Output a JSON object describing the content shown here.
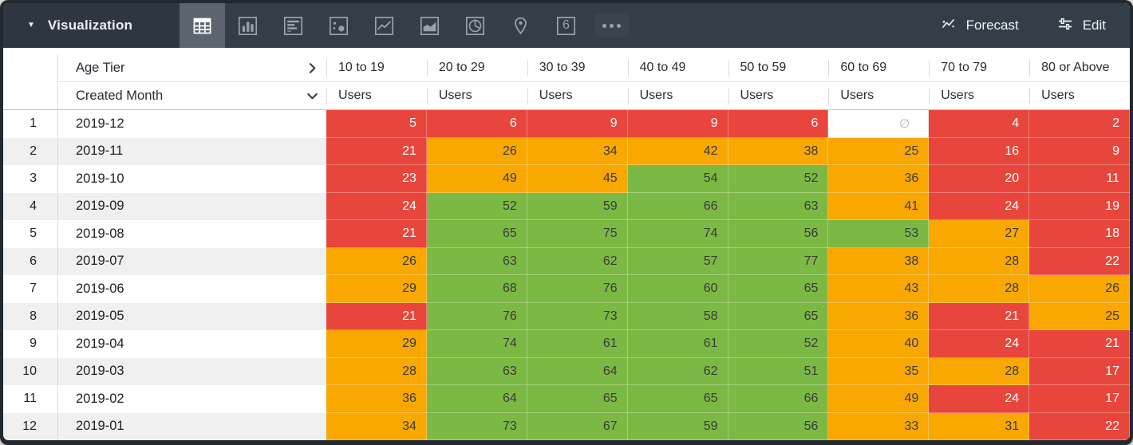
{
  "toolbar": {
    "panel_title": "Visualization",
    "viz_types": [
      "table",
      "bar-chart",
      "row-chart",
      "scatter-plot",
      "line-chart",
      "area-chart",
      "pie-chart",
      "map",
      "single-value",
      "more-options"
    ],
    "selected_viz": "table",
    "single_value_glyph": "6",
    "forecast_label": "Forecast",
    "edit_label": "Edit"
  },
  "table": {
    "pivot_field_label": "Age Tier",
    "row_field_label": "Created Month",
    "measure_label": "Users",
    "age_tiers": [
      "10 to 19",
      "20 to 29",
      "30 to 39",
      "40 to 49",
      "50 to 59",
      "60 to 69",
      "70 to 79",
      "80 or Above"
    ],
    "null_symbol": "∅",
    "rows": [
      {
        "index": 1,
        "month": "2019-12",
        "values": [
          5,
          6,
          9,
          9,
          6,
          null,
          4,
          2
        ]
      },
      {
        "index": 2,
        "month": "2019-11",
        "values": [
          21,
          26,
          34,
          42,
          38,
          25,
          16,
          9
        ]
      },
      {
        "index": 3,
        "month": "2019-10",
        "values": [
          23,
          49,
          45,
          54,
          52,
          36,
          20,
          11
        ]
      },
      {
        "index": 4,
        "month": "2019-09",
        "values": [
          24,
          52,
          59,
          66,
          63,
          41,
          24,
          19
        ]
      },
      {
        "index": 5,
        "month": "2019-08",
        "values": [
          21,
          65,
          75,
          74,
          56,
          53,
          27,
          18
        ]
      },
      {
        "index": 6,
        "month": "2019-07",
        "values": [
          26,
          63,
          62,
          57,
          77,
          38,
          28,
          22
        ]
      },
      {
        "index": 7,
        "month": "2019-06",
        "values": [
          29,
          68,
          76,
          60,
          65,
          43,
          28,
          26
        ]
      },
      {
        "index": 8,
        "month": "2019-05",
        "values": [
          21,
          76,
          73,
          58,
          65,
          36,
          21,
          25
        ]
      },
      {
        "index": 9,
        "month": "2019-04",
        "values": [
          29,
          74,
          61,
          61,
          52,
          40,
          24,
          21
        ]
      },
      {
        "index": 10,
        "month": "2019-03",
        "values": [
          28,
          63,
          64,
          62,
          51,
          35,
          28,
          17
        ]
      },
      {
        "index": 11,
        "month": "2019-02",
        "values": [
          36,
          64,
          65,
          65,
          66,
          49,
          24,
          17
        ]
      },
      {
        "index": 12,
        "month": "2019-01",
        "values": [
          34,
          73,
          67,
          59,
          56,
          33,
          31,
          22
        ]
      }
    ],
    "conditional_format": {
      "red_below": 25,
      "orange_below": 50,
      "colors": {
        "red": "#E8463C",
        "orange": "#F8A800",
        "green": "#7CB944",
        "null_bg": "#FFFFFF"
      },
      "text_on_red": "#FFFFFF",
      "text_on_warm": "#3A3A3A",
      "null_text": "#B6BBC1"
    }
  }
}
